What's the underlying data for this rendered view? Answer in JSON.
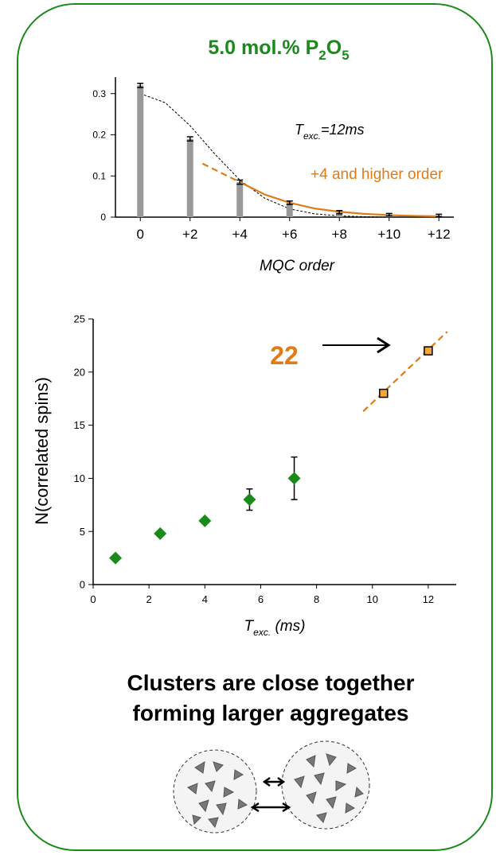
{
  "header": {
    "title": [
      "5.0 mol.% P",
      "2",
      "O",
      "5"
    ]
  },
  "chart_data": [
    {
      "type": "bar",
      "x": [
        0,
        2,
        4,
        6,
        8,
        10,
        12
      ],
      "values": [
        0.32,
        0.19,
        0.085,
        0.035,
        0.012,
        0.006,
        0.004
      ],
      "errors": [
        0.005,
        0.005,
        0.005,
        0.004,
        0.004,
        0.003,
        0.003
      ],
      "color": "#999999",
      "fits": [
        {
          "color": "#000000",
          "dash": true,
          "x": [
            0,
            1,
            2,
            3,
            4,
            5,
            6,
            7,
            8,
            9,
            10,
            11,
            12
          ],
          "values": [
            0.3,
            0.278,
            0.222,
            0.153,
            0.09,
            0.046,
            0.02,
            0.008,
            0.003,
            0.001,
            0,
            0,
            0
          ]
        },
        {
          "color": "#e07b1a",
          "dash": true,
          "x": [
            2.5,
            4
          ],
          "values": [
            0.13,
            0.085
          ]
        },
        {
          "color": "#e07b1a",
          "dash": false,
          "x": [
            4,
            5,
            6,
            7,
            8,
            9,
            10,
            11,
            12
          ],
          "values": [
            0.085,
            0.055,
            0.035,
            0.021,
            0.013,
            0.008,
            0.005,
            0.003,
            0.002
          ]
        }
      ],
      "xlim": [
        -1,
        12.6
      ],
      "ylim": [
        0,
        0.34
      ],
      "xticks": [
        0,
        {
          "value": 2,
          "label": "+2"
        },
        {
          "value": 4,
          "label": "+4"
        },
        {
          "value": 6,
          "label": "+6"
        },
        {
          "value": 8,
          "label": "+8"
        },
        {
          "value": 10,
          "label": "+10"
        },
        {
          "value": 12,
          "label": "+12"
        }
      ],
      "yticks": [
        0,
        0.1,
        0.2,
        0.3
      ],
      "xlabel": "MQC order",
      "annotations": [
        {
          "parts": [
            "T",
            "exc.",
            "=12ms"
          ]
        },
        {
          "text": "+4 and higher order",
          "color": "#e07b1a"
        }
      ]
    },
    {
      "type": "scatter",
      "series": [
        {
          "color": "#1a8a1a",
          "marker": "diamond",
          "x": [
            0.8,
            2.4,
            4,
            5.6,
            7.2
          ],
          "values": [
            2.5,
            4.8,
            6,
            8,
            10
          ],
          "errors": [
            null,
            null,
            null,
            1,
            2
          ]
        },
        {
          "color": "#f7a53a",
          "marker": "square",
          "x": [
            10.4,
            12
          ],
          "values": [
            18,
            22
          ]
        }
      ],
      "fits": [
        {
          "color": "#e07b1a",
          "dash": true,
          "x": [
            9.67,
            12.68
          ],
          "values": [
            16.3,
            23.8
          ]
        }
      ],
      "xlim": [
        0,
        13
      ],
      "ylim": [
        0,
        25
      ],
      "xticks": [
        0,
        2,
        4,
        6,
        8,
        10,
        12
      ],
      "yticks": [
        0,
        5,
        10,
        15,
        20,
        25
      ],
      "xlabel": [
        "T",
        "exc.",
        " (ms)"
      ],
      "ylabel": "N(correlated spins)",
      "annotations": [
        {
          "text": "22",
          "color": "#e07b1a"
        }
      ]
    }
  ],
  "footer": {
    "lines": [
      "Clusters are close together",
      "forming larger aggregates"
    ]
  }
}
